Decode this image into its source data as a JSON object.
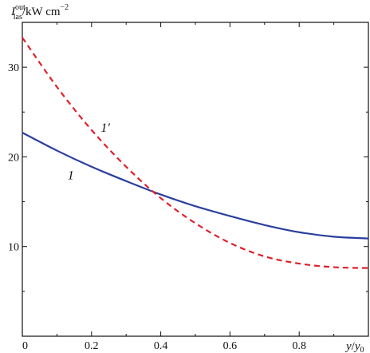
{
  "chart_data": {
    "type": "line",
    "title": "",
    "ylabel": {
      "symbol": "I",
      "superscript": "out",
      "subscript": "las",
      "unit": "/kW cm",
      "unit_exponent": "−2"
    },
    "xlabel": {
      "numerator": "y",
      "slash": "/",
      "denominator": "y",
      "denominator_subscript": "0"
    },
    "xlim": [
      0,
      1
    ],
    "ylim": [
      0,
      35
    ],
    "x_ticks": [
      0,
      0.2,
      0.4,
      0.6,
      0.8
    ],
    "x_tick_labels": [
      "0",
      "0.2",
      "0.4",
      "0.6",
      "0.8"
    ],
    "y_ticks": [
      10,
      20,
      30
    ],
    "y_tick_labels": [
      "10",
      "20",
      "30"
    ],
    "grid": false,
    "legend": "none",
    "series": [
      {
        "label": "1",
        "color": "#2b3f9e",
        "style": "solid",
        "x": [
          0,
          0.1,
          0.2,
          0.3,
          0.4,
          0.5,
          0.6,
          0.7,
          0.8,
          0.9,
          1.0
        ],
        "y": [
          22.7,
          20.7,
          18.9,
          17.3,
          15.8,
          14.5,
          13.4,
          12.4,
          11.6,
          11.1,
          10.9
        ]
      },
      {
        "label": "1′",
        "color": "#e0202a",
        "style": "dashed",
        "x": [
          0,
          0.1,
          0.2,
          0.3,
          0.4,
          0.5,
          0.6,
          0.7,
          0.8,
          0.9,
          1.0
        ],
        "y": [
          33.3,
          27.8,
          23.0,
          18.9,
          15.4,
          12.6,
          10.4,
          8.9,
          8.1,
          7.7,
          7.6
        ]
      }
    ],
    "annotations": [
      {
        "text": "1′",
        "x": 0.24,
        "y": 22.8
      },
      {
        "text": "1",
        "x": 0.14,
        "y": 17.5
      }
    ]
  }
}
